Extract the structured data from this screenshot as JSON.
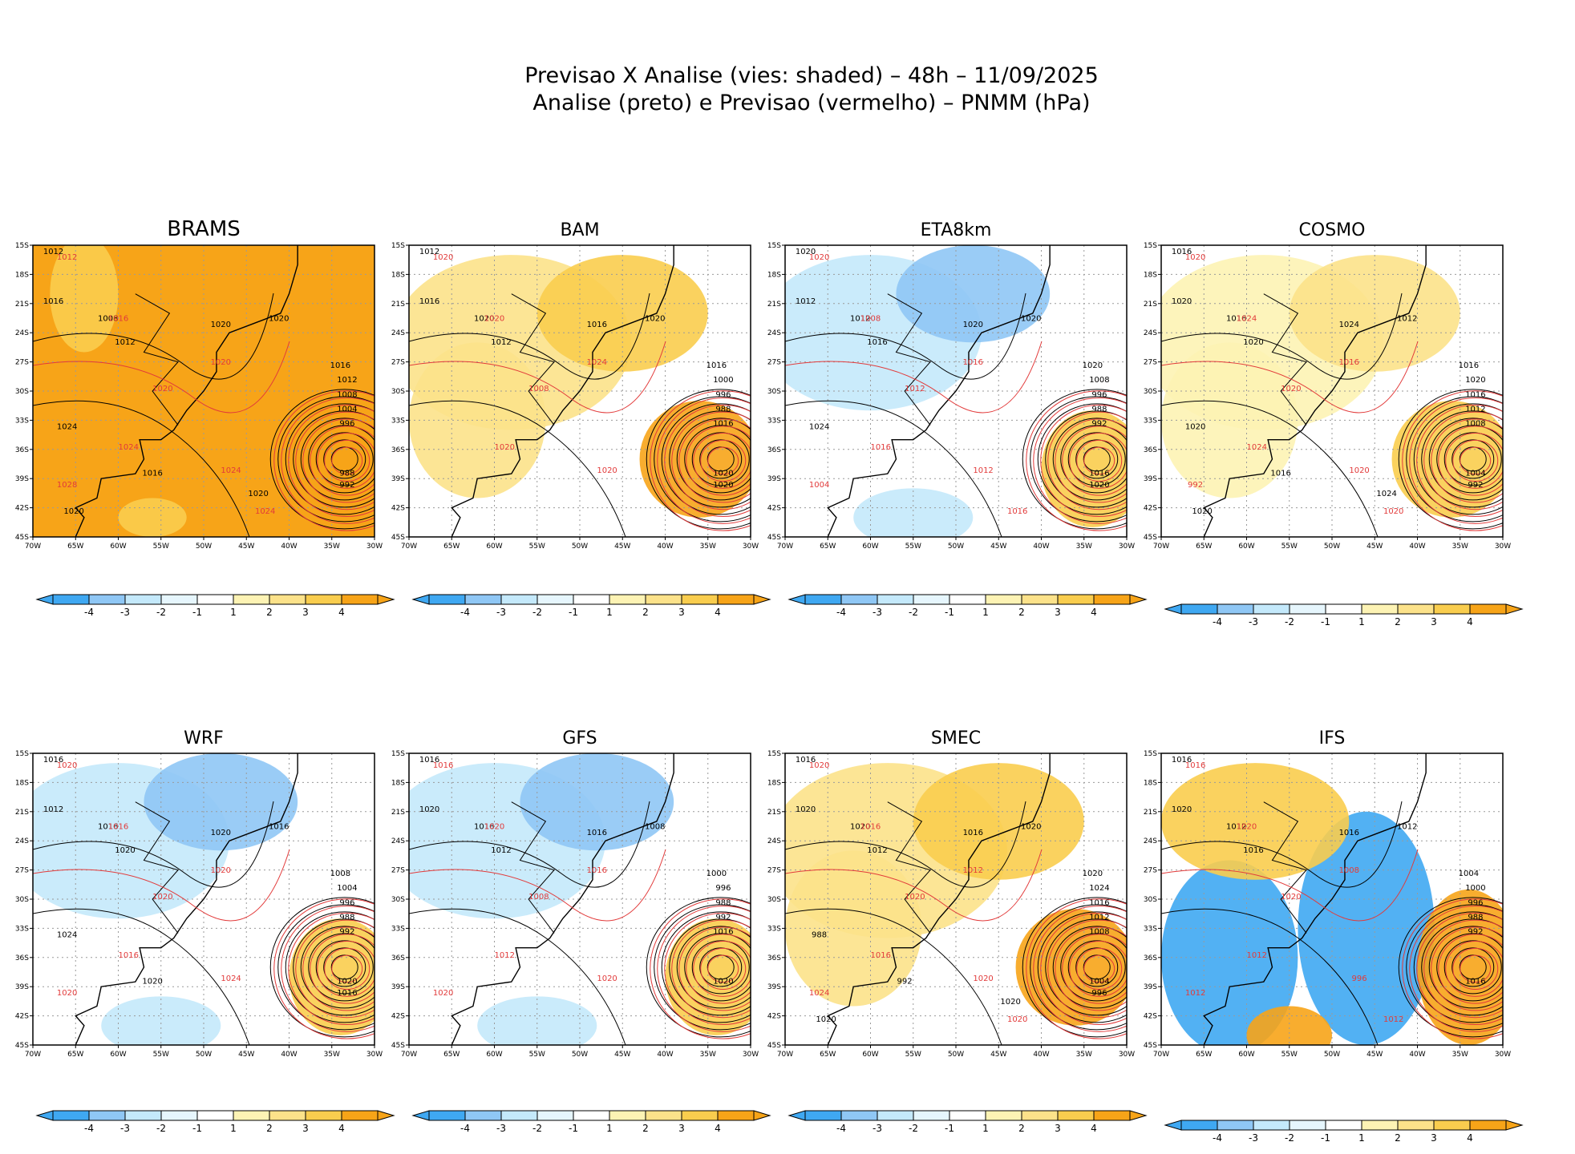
{
  "title": {
    "line1": "Previsao X Analise (vies: shaded) – 48h – 11/09/2025",
    "line2": "Analise (preto) e Previsao (vermelho) – PNMM (hPa)"
  },
  "colors": {
    "blue4": "#3fa8f2",
    "blue3": "#8fc7f5",
    "blue2": "#c4e9fb",
    "blue1": "#e6f6fd",
    "yellow1": "#fdf3b4",
    "yellow2": "#fce28a",
    "orange3": "#f9cd4e",
    "orange4": "#f7a418",
    "analysis_contour": "#000000",
    "forecast_contour": "#e23a3a",
    "grid": "#9a9a9a"
  },
  "chart_data": [
    {
      "type": "heatmap",
      "model": "BRAMS",
      "title": "BRAMS",
      "dominant_bias": 4,
      "xlim": [
        -70,
        -30
      ],
      "ylim": [
        -45,
        -15
      ],
      "x_ticks": [
        "70W",
        "65W",
        "60W",
        "55W",
        "50W",
        "45W",
        "40W",
        "35W",
        "30W"
      ],
      "y_ticks": [
        "15S",
        "18S",
        "21S",
        "24S",
        "27S",
        "30S",
        "33S",
        "36S",
        "39S",
        "42S",
        "45S"
      ],
      "cyclone_center": {
        "lon": -33.5,
        "lat": -37
      },
      "contour_labels_analysis": [
        "1012",
        "1016",
        "1008",
        "1012",
        "1020",
        "1020",
        "1016",
        "1012",
        "1008",
        "1004",
        "996",
        "988",
        "992",
        "1024",
        "1016",
        "1020",
        "1020"
      ],
      "contour_labels_forecast": [
        "1012",
        "1016",
        "1020",
        "1024",
        "1020",
        "1024",
        "1028",
        "1024"
      ],
      "colorbar": {
        "levels": [
          "-4",
          "-3",
          "-2",
          "-1",
          "1",
          "2",
          "3",
          "4"
        ]
      }
    },
    {
      "type": "heatmap",
      "model": "BAM",
      "title": "BAM",
      "dominant_bias": 2,
      "xlim": [
        -70,
        -30
      ],
      "ylim": [
        -45,
        -15
      ],
      "x_ticks": [
        "70W",
        "65W",
        "60W",
        "55W",
        "50W",
        "45W",
        "40W",
        "35W",
        "30W"
      ],
      "y_ticks": [
        "15S",
        "18S",
        "21S",
        "24S",
        "27S",
        "30S",
        "33S",
        "36S",
        "39S",
        "42S",
        "45S"
      ],
      "cyclone_center": {
        "lon": -33.5,
        "lat": -37
      },
      "contour_labels_analysis": [
        "1012",
        "1016",
        "1020",
        "1012",
        "1016",
        "1020",
        "1016",
        "1000",
        "996",
        "988",
        "1016",
        "1020",
        "1020"
      ],
      "contour_labels_forecast": [
        "1020",
        "1020",
        "1008",
        "1020",
        "1024",
        "1020"
      ],
      "colorbar": {
        "levels": [
          "-4",
          "-3",
          "-2",
          "-1",
          "1",
          "2",
          "3",
          "4"
        ]
      }
    },
    {
      "type": "heatmap",
      "model": "ETA8km",
      "title": "ETA8km",
      "dominant_bias": -2,
      "xlim": [
        -70,
        -30
      ],
      "ylim": [
        -45,
        -15
      ],
      "x_ticks": [
        "70W",
        "65W",
        "60W",
        "55W",
        "50W",
        "45W",
        "40W",
        "35W",
        "30W"
      ],
      "y_ticks": [
        "15S",
        "18S",
        "21S",
        "24S",
        "27S",
        "30S",
        "33S",
        "36S",
        "39S",
        "42S",
        "45S"
      ],
      "cyclone_center": {
        "lon": -33.5,
        "lat": -37
      },
      "contour_labels_analysis": [
        "1020",
        "1012",
        "1012",
        "1016",
        "1020",
        "1020",
        "1020",
        "1008",
        "996",
        "988",
        "992",
        "1016",
        "1020",
        "1024"
      ],
      "contour_labels_forecast": [
        "1020",
        "1008",
        "1012",
        "1016",
        "1016",
        "1012",
        "1004",
        "1016"
      ],
      "colorbar": {
        "levels": [
          "-4",
          "-3",
          "-2",
          "-1",
          "1",
          "2",
          "3",
          "4"
        ]
      }
    },
    {
      "type": "heatmap",
      "model": "COSMO",
      "title": "COSMO",
      "dominant_bias": 1,
      "xlim": [
        -70,
        -30
      ],
      "ylim": [
        -45,
        -15
      ],
      "x_ticks": [
        "70W",
        "65W",
        "60W",
        "55W",
        "50W",
        "45W",
        "40W",
        "35W",
        "30W"
      ],
      "y_ticks": [
        "15S",
        "18S",
        "21S",
        "24S",
        "27S",
        "30S",
        "33S",
        "36S",
        "39S",
        "42S",
        "45S"
      ],
      "cyclone_center": {
        "lon": -33.5,
        "lat": -37
      },
      "contour_labels_analysis": [
        "1016",
        "1020",
        "1016",
        "1020",
        "1024",
        "1012",
        "1016",
        "1020",
        "1016",
        "1012",
        "1008",
        "1004",
        "992",
        "1020",
        "1016",
        "1024",
        "1020"
      ],
      "contour_labels_forecast": [
        "1020",
        "1024",
        "1020",
        "1024",
        "1016",
        "1020",
        "992",
        "1020"
      ],
      "colorbar": {
        "levels": [
          "-4",
          "-3",
          "-2",
          "-1",
          "1",
          "2",
          "3",
          "4"
        ]
      }
    },
    {
      "type": "heatmap",
      "model": "WRF",
      "title": "WRF",
      "dominant_bias": -2,
      "xlim": [
        -70,
        -30
      ],
      "ylim": [
        -45,
        -15
      ],
      "x_ticks": [
        "70W",
        "65W",
        "60W",
        "55W",
        "50W",
        "45W",
        "40W",
        "35W",
        "30W"
      ],
      "y_ticks": [
        "15S",
        "18S",
        "21S",
        "24S",
        "27S",
        "30S",
        "33S",
        "36S",
        "39S",
        "42S",
        "45S"
      ],
      "cyclone_center": {
        "lon": -33.5,
        "lat": -37
      },
      "contour_labels_analysis": [
        "1016",
        "1012",
        "1016",
        "1020",
        "1020",
        "1016",
        "1008",
        "1004",
        "996",
        "988",
        "992",
        "1020",
        "1016",
        "1024",
        "1020"
      ],
      "contour_labels_forecast": [
        "1020",
        "1016",
        "1020",
        "1016",
        "1020",
        "1024",
        "1020"
      ],
      "colorbar": {
        "levels": [
          "-4",
          "-3",
          "-2",
          "-1",
          "1",
          "2",
          "3",
          "4"
        ]
      }
    },
    {
      "type": "heatmap",
      "model": "GFS",
      "title": "GFS",
      "dominant_bias": -2,
      "xlim": [
        -70,
        -30
      ],
      "ylim": [
        -45,
        -15
      ],
      "x_ticks": [
        "70W",
        "65W",
        "60W",
        "55W",
        "50W",
        "45W",
        "40W",
        "35W",
        "30W"
      ],
      "y_ticks": [
        "15S",
        "18S",
        "21S",
        "24S",
        "27S",
        "30S",
        "33S",
        "36S",
        "39S",
        "42S",
        "45S"
      ],
      "cyclone_center": {
        "lon": -33.5,
        "lat": -37
      },
      "contour_labels_analysis": [
        "1016",
        "1020",
        "1016",
        "1012",
        "1016",
        "1008",
        "1000",
        "996",
        "988",
        "992",
        "1016",
        "1020"
      ],
      "contour_labels_forecast": [
        "1016",
        "1020",
        "1008",
        "1012",
        "1016",
        "1020",
        "1020"
      ],
      "colorbar": {
        "levels": [
          "-4",
          "-3",
          "-2",
          "-1",
          "1",
          "2",
          "3",
          "4"
        ]
      }
    },
    {
      "type": "heatmap",
      "model": "SMEC",
      "title": "SMEC",
      "dominant_bias": 2,
      "xlim": [
        -70,
        -30
      ],
      "ylim": [
        -45,
        -15
      ],
      "x_ticks": [
        "70W",
        "65W",
        "60W",
        "55W",
        "50W",
        "45W",
        "40W",
        "35W",
        "30W"
      ],
      "y_ticks": [
        "15S",
        "18S",
        "21S",
        "24S",
        "27S",
        "30S",
        "33S",
        "36S",
        "39S",
        "42S",
        "45S"
      ],
      "cyclone_center": {
        "lon": -33.5,
        "lat": -37
      },
      "contour_labels_analysis": [
        "1016",
        "1020",
        "1020",
        "1012",
        "1016",
        "1020",
        "1020",
        "1024",
        "1016",
        "1012",
        "1008",
        "1004",
        "996",
        "988",
        "992",
        "1020",
        "1020"
      ],
      "contour_labels_forecast": [
        "1020",
        "1016",
        "1020",
        "1016",
        "1012",
        "1020",
        "1024",
        "1020"
      ],
      "colorbar": {
        "levels": [
          "-4",
          "-3",
          "-2",
          "-1",
          "1",
          "2",
          "3",
          "4"
        ]
      }
    },
    {
      "type": "heatmap",
      "model": "IFS",
      "title": "IFS",
      "dominant_bias": -4,
      "xlim": [
        -70,
        -30
      ],
      "ylim": [
        -45,
        -15
      ],
      "x_ticks": [
        "70W",
        "65W",
        "60W",
        "55W",
        "50W",
        "45W",
        "40W",
        "35W",
        "30W"
      ],
      "y_ticks": [
        "15S",
        "18S",
        "21S",
        "24S",
        "27S",
        "30S",
        "33S",
        "36S",
        "39S",
        "42S",
        "45S"
      ],
      "cyclone_center": {
        "lon": -33.5,
        "lat": -37
      },
      "contour_labels_analysis": [
        "1016",
        "1020",
        "1012",
        "1016",
        "1016",
        "1012",
        "1004",
        "1000",
        "996",
        "988",
        "992",
        "1016"
      ],
      "contour_labels_forecast": [
        "1016",
        "1020",
        "1020",
        "1012",
        "1008",
        "996",
        "1012",
        "1012"
      ],
      "colorbar": {
        "levels": [
          "-4",
          "-3",
          "-2",
          "-1",
          "1",
          "2",
          "3",
          "4"
        ]
      }
    }
  ]
}
